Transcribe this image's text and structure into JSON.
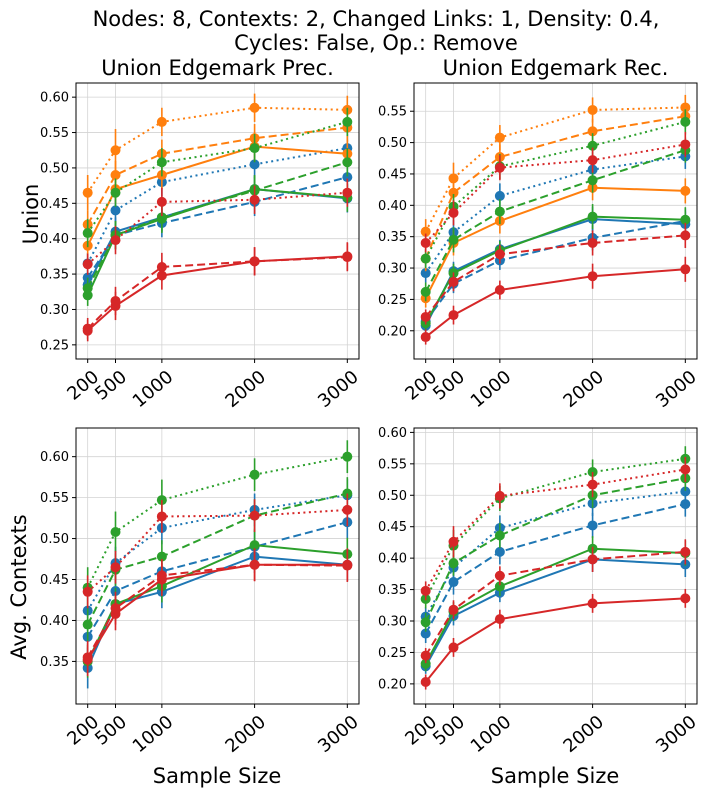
{
  "figure": {
    "suptitle_line1": "Nodes: 8, Contexts: 2, Changed Links: 1, Density: 0.4,",
    "suptitle_line2": "Cycles: False, Op.: Remove",
    "row_labels": [
      "Union",
      "Avg. Contexts"
    ],
    "xlabel": "Sample Size"
  },
  "colors": {
    "blue": "#1f77b4",
    "orange": "#ff7f0e",
    "green": "#2ca02c",
    "red": "#d62728"
  },
  "chart_data": [
    {
      "type": "line",
      "title": "Union Edgemark Prec.",
      "x": [
        200,
        500,
        1000,
        2000,
        3000
      ],
      "xticks": [
        "200",
        "500",
        "1000",
        "2000",
        "3000"
      ],
      "ylim": [
        0.23,
        0.62
      ],
      "yticks": [
        0.25,
        0.3,
        0.35,
        0.4,
        0.45,
        0.5,
        0.55,
        0.6
      ],
      "grid": true,
      "series": [
        {
          "color": "blue",
          "style": "solid",
          "values": [
            0.335,
            0.41,
            0.43,
            0.47,
            0.457
          ],
          "err": [
            0.015,
            0.02,
            0.02,
            0.02,
            0.02
          ]
        },
        {
          "color": "blue",
          "style": "dashed",
          "values": [
            0.345,
            0.405,
            0.422,
            0.452,
            0.487
          ],
          "err": [
            0.015,
            0.02,
            0.02,
            0.02,
            0.02
          ]
        },
        {
          "color": "blue",
          "style": "dotted",
          "values": [
            0.365,
            0.44,
            0.48,
            0.505,
            0.528
          ],
          "err": [
            0.015,
            0.02,
            0.02,
            0.02,
            0.02
          ]
        },
        {
          "color": "orange",
          "style": "solid",
          "values": [
            0.39,
            0.47,
            0.49,
            0.53,
            0.52
          ],
          "err": [
            0.02,
            0.02,
            0.02,
            0.02,
            0.02
          ]
        },
        {
          "color": "orange",
          "style": "dashed",
          "values": [
            0.42,
            0.49,
            0.52,
            0.542,
            0.557
          ],
          "err": [
            0.02,
            0.02,
            0.02,
            0.02,
            0.02
          ]
        },
        {
          "color": "orange",
          "style": "dotted",
          "values": [
            0.465,
            0.525,
            0.565,
            0.585,
            0.582
          ],
          "err": [
            0.025,
            0.03,
            0.02,
            0.02,
            0.02
          ]
        },
        {
          "color": "green",
          "style": "solid",
          "values": [
            0.32,
            0.405,
            0.428,
            0.47,
            0.458
          ],
          "err": [
            0.015,
            0.02,
            0.02,
            0.02,
            0.02
          ]
        },
        {
          "color": "green",
          "style": "dashed",
          "values": [
            0.33,
            0.405,
            0.43,
            0.468,
            0.508
          ],
          "err": [
            0.015,
            0.02,
            0.02,
            0.02,
            0.02
          ]
        },
        {
          "color": "green",
          "style": "dotted",
          "values": [
            0.408,
            0.465,
            0.508,
            0.528,
            0.565
          ],
          "err": [
            0.02,
            0.02,
            0.02,
            0.02,
            0.02
          ]
        },
        {
          "color": "red",
          "style": "solid",
          "values": [
            0.27,
            0.305,
            0.348,
            0.368,
            0.375
          ],
          "err": [
            0.015,
            0.02,
            0.02,
            0.02,
            0.02
          ]
        },
        {
          "color": "red",
          "style": "dashed",
          "values": [
            0.273,
            0.312,
            0.36,
            0.368,
            0.374
          ],
          "err": [
            0.015,
            0.02,
            0.02,
            0.02,
            0.02
          ]
        },
        {
          "color": "red",
          "style": "dotted",
          "values": [
            0.364,
            0.398,
            0.452,
            0.455,
            0.465
          ],
          "err": [
            0.015,
            0.02,
            0.02,
            0.02,
            0.02
          ]
        }
      ]
    },
    {
      "type": "line",
      "title": "Union Edgemark Rec.",
      "x": [
        200,
        500,
        1000,
        2000,
        3000
      ],
      "xticks": [
        "200",
        "500",
        "1000",
        "2000",
        "3000"
      ],
      "ylim": [
        0.155,
        0.595
      ],
      "yticks": [
        0.2,
        0.25,
        0.3,
        0.35,
        0.4,
        0.45,
        0.5,
        0.55
      ],
      "grid": true,
      "series": [
        {
          "color": "blue",
          "style": "solid",
          "values": [
            0.208,
            0.295,
            0.33,
            0.378,
            0.37
          ],
          "err": [
            0.012,
            0.015,
            0.015,
            0.02,
            0.02
          ]
        },
        {
          "color": "blue",
          "style": "dashed",
          "values": [
            0.215,
            0.275,
            0.312,
            0.348,
            0.375
          ],
          "err": [
            0.012,
            0.015,
            0.015,
            0.02,
            0.02
          ]
        },
        {
          "color": "blue",
          "style": "dotted",
          "values": [
            0.292,
            0.357,
            0.415,
            0.457,
            0.478
          ],
          "err": [
            0.015,
            0.02,
            0.02,
            0.02,
            0.02
          ]
        },
        {
          "color": "orange",
          "style": "solid",
          "values": [
            0.252,
            0.34,
            0.375,
            0.428,
            0.423
          ],
          "err": [
            0.015,
            0.02,
            0.02,
            0.02,
            0.02
          ]
        },
        {
          "color": "orange",
          "style": "dashed",
          "values": [
            0.315,
            0.42,
            0.477,
            0.518,
            0.542
          ],
          "err": [
            0.02,
            0.02,
            0.02,
            0.02,
            0.02
          ]
        },
        {
          "color": "orange",
          "style": "dotted",
          "values": [
            0.358,
            0.443,
            0.508,
            0.552,
            0.556
          ],
          "err": [
            0.02,
            0.025,
            0.02,
            0.02,
            0.02
          ]
        },
        {
          "color": "green",
          "style": "solid",
          "values": [
            0.212,
            0.292,
            0.328,
            0.382,
            0.377
          ],
          "err": [
            0.012,
            0.015,
            0.015,
            0.02,
            0.02
          ]
        },
        {
          "color": "green",
          "style": "dashed",
          "values": [
            0.262,
            0.345,
            0.39,
            0.44,
            0.488
          ],
          "err": [
            0.015,
            0.02,
            0.02,
            0.02,
            0.02
          ]
        },
        {
          "color": "green",
          "style": "dotted",
          "values": [
            0.315,
            0.398,
            0.462,
            0.495,
            0.533
          ],
          "err": [
            0.015,
            0.02,
            0.02,
            0.02,
            0.02
          ]
        },
        {
          "color": "red",
          "style": "solid",
          "values": [
            0.19,
            0.225,
            0.265,
            0.287,
            0.298
          ],
          "err": [
            0.012,
            0.015,
            0.015,
            0.02,
            0.02
          ]
        },
        {
          "color": "red",
          "style": "dashed",
          "values": [
            0.222,
            0.278,
            0.322,
            0.34,
            0.352
          ],
          "err": [
            0.012,
            0.015,
            0.015,
            0.02,
            0.02
          ]
        },
        {
          "color": "red",
          "style": "dotted",
          "values": [
            0.34,
            0.388,
            0.46,
            0.472,
            0.497
          ],
          "err": [
            0.015,
            0.02,
            0.02,
            0.02,
            0.02
          ]
        }
      ]
    },
    {
      "type": "line",
      "title": "",
      "x": [
        200,
        500,
        1000,
        2000,
        3000
      ],
      "xticks": [
        "200",
        "500",
        "1000",
        "2000",
        "3000"
      ],
      "ylim": [
        0.298,
        0.635
      ],
      "yticks": [
        0.35,
        0.4,
        0.45,
        0.5,
        0.55,
        0.6
      ],
      "grid": true,
      "series": [
        {
          "color": "blue",
          "style": "solid",
          "values": [
            0.342,
            0.42,
            0.435,
            0.478,
            0.468
          ],
          "err": [
            0.025,
            0.02,
            0.02,
            0.02,
            0.02
          ]
        },
        {
          "color": "blue",
          "style": "dashed",
          "values": [
            0.38,
            0.436,
            0.46,
            0.49,
            0.52
          ],
          "err": [
            0.02,
            0.02,
            0.02,
            0.02,
            0.02
          ]
        },
        {
          "color": "blue",
          "style": "dotted",
          "values": [
            0.412,
            0.47,
            0.513,
            0.535,
            0.553
          ],
          "err": [
            0.02,
            0.02,
            0.02,
            0.02,
            0.02
          ]
        },
        {
          "color": "green",
          "style": "solid",
          "values": [
            0.35,
            0.42,
            0.442,
            0.492,
            0.481
          ],
          "err": [
            0.02,
            0.02,
            0.02,
            0.02,
            0.02
          ]
        },
        {
          "color": "green",
          "style": "dashed",
          "values": [
            0.395,
            0.462,
            0.478,
            0.528,
            0.555
          ],
          "err": [
            0.02,
            0.02,
            0.02,
            0.02,
            0.02
          ]
        },
        {
          "color": "green",
          "style": "dotted",
          "values": [
            0.44,
            0.508,
            0.547,
            0.578,
            0.6
          ],
          "err": [
            0.025,
            0.025,
            0.025,
            0.02,
            0.02
          ]
        },
        {
          "color": "red",
          "style": "solid",
          "values": [
            0.352,
            0.408,
            0.45,
            0.468,
            0.468
          ],
          "err": [
            0.02,
            0.02,
            0.02,
            0.02,
            0.02
          ]
        },
        {
          "color": "red",
          "style": "dashed",
          "values": [
            0.355,
            0.415,
            0.455,
            0.468,
            0.467
          ],
          "err": [
            0.02,
            0.02,
            0.02,
            0.02,
            0.02
          ]
        },
        {
          "color": "red",
          "style": "dotted",
          "values": [
            0.435,
            0.465,
            0.527,
            0.528,
            0.535
          ],
          "err": [
            0.02,
            0.02,
            0.02,
            0.02,
            0.02
          ]
        }
      ]
    },
    {
      "type": "line",
      "title": "",
      "x": [
        200,
        500,
        1000,
        2000,
        3000
      ],
      "xticks": [
        "200",
        "500",
        "1000",
        "2000",
        "3000"
      ],
      "ylim": [
        0.168,
        0.607
      ],
      "yticks": [
        0.2,
        0.25,
        0.3,
        0.35,
        0.4,
        0.45,
        0.5,
        0.55,
        0.6
      ],
      "grid": true,
      "series": [
        {
          "color": "blue",
          "style": "solid",
          "values": [
            0.228,
            0.308,
            0.345,
            0.398,
            0.39
          ],
          "err": [
            0.012,
            0.015,
            0.015,
            0.02,
            0.02
          ]
        },
        {
          "color": "blue",
          "style": "dashed",
          "values": [
            0.28,
            0.362,
            0.41,
            0.452,
            0.486
          ],
          "err": [
            0.015,
            0.02,
            0.02,
            0.02,
            0.02
          ]
        },
        {
          "color": "blue",
          "style": "dotted",
          "values": [
            0.307,
            0.385,
            0.448,
            0.487,
            0.506
          ],
          "err": [
            0.015,
            0.02,
            0.02,
            0.02,
            0.02
          ]
        },
        {
          "color": "green",
          "style": "solid",
          "values": [
            0.232,
            0.315,
            0.355,
            0.415,
            0.408
          ],
          "err": [
            0.012,
            0.015,
            0.015,
            0.02,
            0.02
          ]
        },
        {
          "color": "green",
          "style": "dashed",
          "values": [
            0.298,
            0.392,
            0.436,
            0.5,
            0.527
          ],
          "err": [
            0.015,
            0.02,
            0.02,
            0.02,
            0.02
          ]
        },
        {
          "color": "green",
          "style": "dotted",
          "values": [
            0.335,
            0.42,
            0.495,
            0.537,
            0.558
          ],
          "err": [
            0.015,
            0.025,
            0.02,
            0.02,
            0.02
          ]
        },
        {
          "color": "red",
          "style": "solid",
          "values": [
            0.203,
            0.258,
            0.303,
            0.328,
            0.336
          ],
          "err": [
            0.012,
            0.015,
            0.015,
            0.015,
            0.015
          ]
        },
        {
          "color": "red",
          "style": "dashed",
          "values": [
            0.245,
            0.318,
            0.372,
            0.398,
            0.41
          ],
          "err": [
            0.012,
            0.015,
            0.015,
            0.02,
            0.02
          ]
        },
        {
          "color": "red",
          "style": "dotted",
          "values": [
            0.348,
            0.426,
            0.499,
            0.517,
            0.541
          ],
          "err": [
            0.015,
            0.025,
            0.02,
            0.02,
            0.02
          ]
        }
      ]
    }
  ]
}
